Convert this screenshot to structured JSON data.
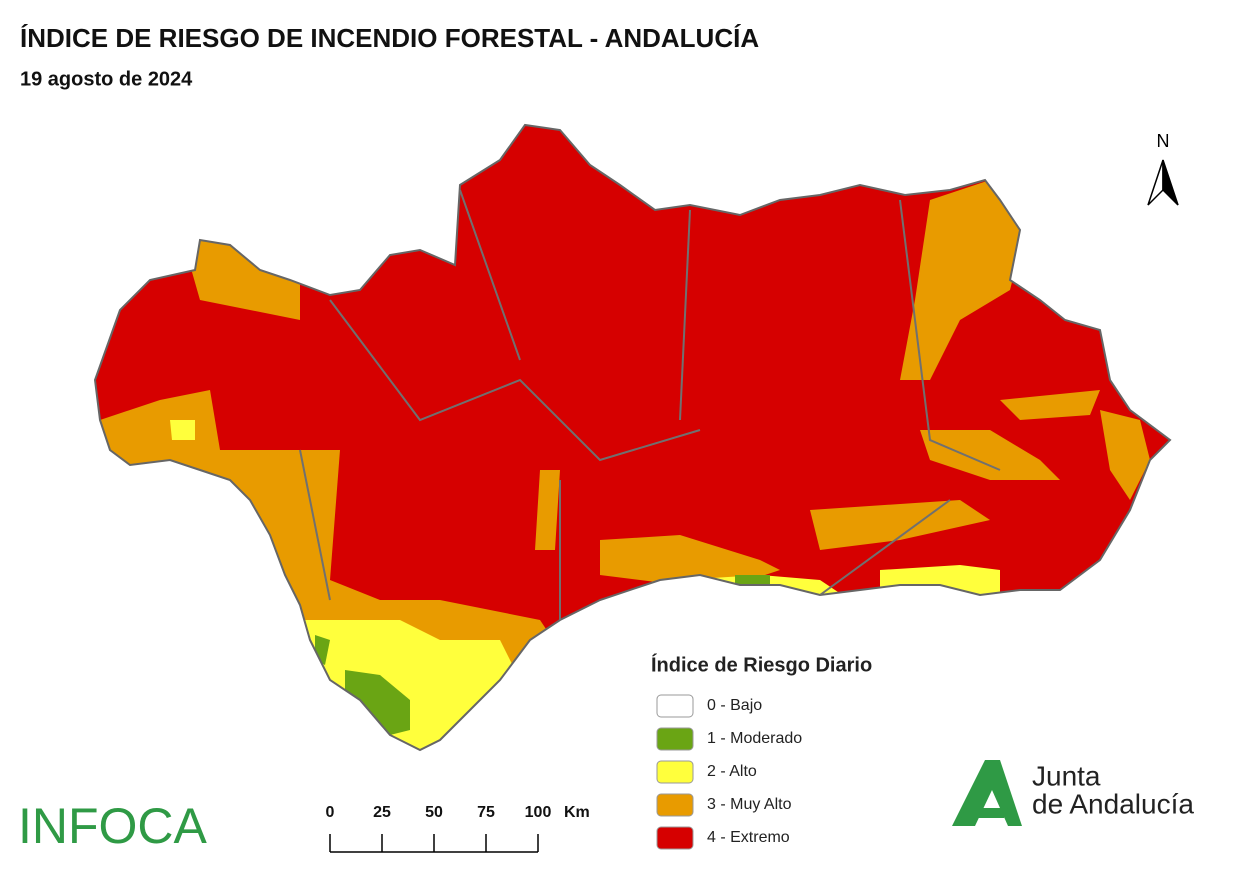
{
  "header": {
    "title": "ÍNDICE DE RIESGO DE INCENDIO FORESTAL - ANDALUCÍA",
    "subtitle": "19 agosto de 2024"
  },
  "north_arrow": "N",
  "legend": {
    "title": "Índice de Riesgo Diario",
    "items": [
      {
        "label": "0 - Bajo",
        "color": "#ffffff"
      },
      {
        "label": "1 - Moderado",
        "color": "#6aa514"
      },
      {
        "label": "2 - Alto",
        "color": "#ffff3c"
      },
      {
        "label": "3 - Muy Alto",
        "color": "#e89b00"
      },
      {
        "label": "4 - Extremo",
        "color": "#d60000"
      }
    ]
  },
  "scale_bar": {
    "ticks": [
      0,
      25,
      50,
      75,
      100
    ],
    "unit": "Km"
  },
  "logos": {
    "infoca": "INFOCA",
    "junta": [
      "Junta",
      "de Andalucía"
    ]
  }
}
